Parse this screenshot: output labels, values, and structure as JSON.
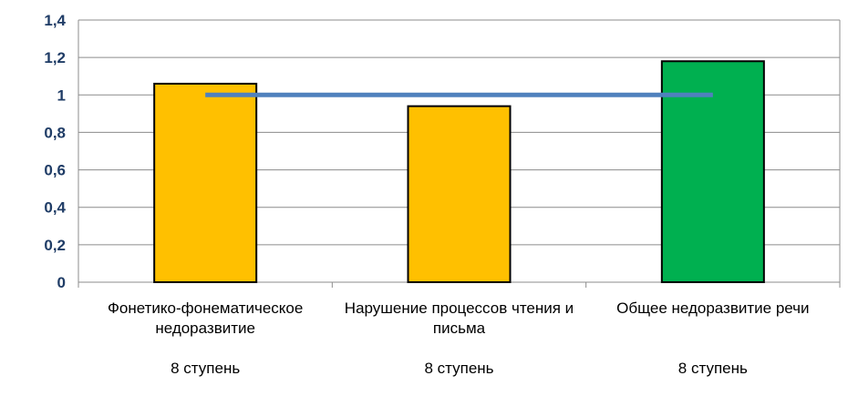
{
  "chart_data": {
    "type": "bar",
    "title": "",
    "xlabel": "",
    "ylabel": "",
    "ylim": [
      0,
      1.4
    ],
    "yticks": [
      "0",
      "0,2",
      "0,4",
      "0,6",
      "0,8",
      "1",
      "1,2",
      "1,4"
    ],
    "ytick_values": [
      0,
      0.2,
      0.4,
      0.6,
      0.8,
      1.0,
      1.2,
      1.4
    ],
    "grid": true,
    "legend": "none",
    "categories": [
      {
        "label_lines": [
          "Фонетико-фонематическое",
          "недоразвитие"
        ],
        "sub_label": "8 ступень"
      },
      {
        "label_lines": [
          "Нарушение процессов чтения и",
          "письма"
        ],
        "sub_label": "8 ступень"
      },
      {
        "label_lines": [
          "Общее недоразвитие речи"
        ],
        "sub_label": "8 ступень"
      }
    ],
    "series": [
      {
        "type": "bar",
        "values": [
          1.06,
          0.94,
          1.18
        ],
        "colors": [
          "#FFC000",
          "#FFC000",
          "#00B050"
        ]
      },
      {
        "type": "line",
        "values": [
          1.0,
          1.0,
          1.0
        ],
        "color": "#4F81BD"
      }
    ]
  }
}
